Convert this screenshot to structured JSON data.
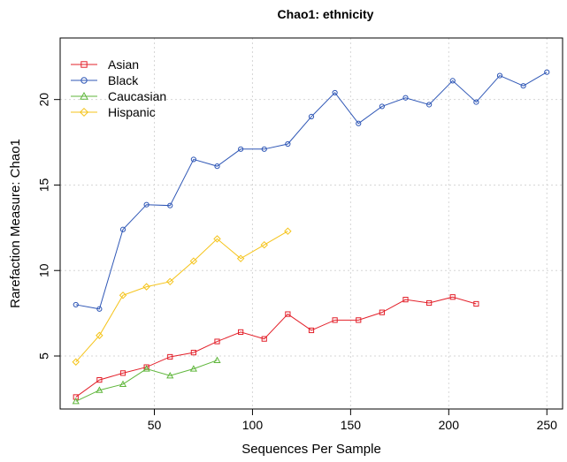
{
  "chart_data": {
    "type": "line",
    "title": "Chao1: ethnicity",
    "xlabel": "Sequences Per Sample",
    "ylabel": "Rarefaction Measure: Chao1",
    "xlim": [
      2,
      258
    ],
    "ylim": [
      1.9,
      23.6
    ],
    "xticks": [
      50,
      100,
      150,
      200,
      250
    ],
    "yticks": [
      5,
      10,
      15,
      20
    ],
    "grid": true,
    "legend_position": "top-left",
    "series": [
      {
        "name": "Asian",
        "color": "#e3202a",
        "marker": "square",
        "x": [
          10,
          22,
          34,
          46,
          58,
          70,
          82,
          94,
          106,
          118,
          130,
          142,
          154,
          166,
          178,
          190,
          202,
          214
        ],
        "y": [
          2.6,
          3.6,
          4.0,
          4.35,
          4.95,
          5.2,
          5.85,
          6.4,
          6.0,
          7.45,
          6.5,
          7.1,
          7.1,
          7.55,
          8.3,
          8.1,
          8.45,
          8.05
        ]
      },
      {
        "name": "Black",
        "color": "#2f57b6",
        "marker": "circle",
        "x": [
          10,
          22,
          34,
          46,
          58,
          70,
          82,
          94,
          106,
          118,
          130,
          142,
          154,
          166,
          178,
          190,
          202,
          214,
          226,
          238,
          250
        ],
        "y": [
          8.0,
          7.75,
          12.4,
          13.85,
          13.8,
          16.5,
          16.1,
          17.1,
          17.1,
          17.4,
          19.0,
          20.4,
          18.6,
          19.6,
          20.1,
          19.7,
          21.1,
          19.85,
          21.4,
          20.8,
          21.6
        ]
      },
      {
        "name": "Caucasian",
        "color": "#5fb63b",
        "marker": "triangle",
        "x": [
          10,
          22,
          34,
          46,
          58,
          70,
          82
        ],
        "y": [
          2.35,
          3.0,
          3.35,
          4.25,
          3.85,
          4.25,
          4.75
        ]
      },
      {
        "name": "Hispanic",
        "color": "#f5c318",
        "marker": "diamond",
        "x": [
          10,
          22,
          34,
          46,
          58,
          70,
          82,
          94,
          106,
          118
        ],
        "y": [
          4.65,
          6.2,
          8.55,
          9.05,
          9.35,
          10.55,
          11.85,
          10.7,
          11.5,
          12.3
        ]
      }
    ]
  }
}
